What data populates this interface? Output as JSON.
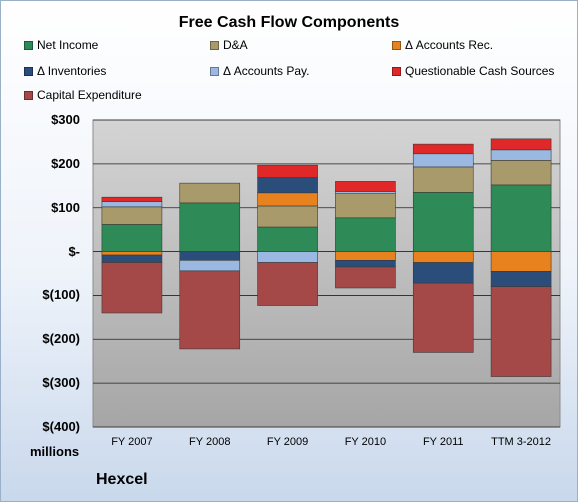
{
  "chart_data": {
    "type": "bar",
    "stacked": true,
    "title": "Free Cash Flow Components",
    "units_label": "millions",
    "company": "Hexcel",
    "categories": [
      "FY 2007",
      "FY 2008",
      "FY 2009",
      "FY 2010",
      "FY 2011",
      "TTM 3-2012"
    ],
    "y_ticks": [
      "$300",
      "$200",
      "$100",
      "$-",
      "$(100)",
      "$(200)",
      "$(300)",
      "$(400)"
    ],
    "y_tick_values": [
      300,
      200,
      100,
      0,
      -100,
      -200,
      -300,
      -400
    ],
    "ylim": [
      -400,
      300
    ],
    "grid": true,
    "legend_position": "top",
    "series": [
      {
        "name": "Net Income",
        "color": "#2e8b57",
        "values": [
          62,
          111,
          56,
          77,
          135,
          152
        ]
      },
      {
        "name": "D&A",
        "color": "#a89a6a",
        "values": [
          40,
          45,
          48,
          55,
          58,
          56
        ]
      },
      {
        "name": "Δ Accounts Rec.",
        "color": "#e8821e",
        "values": [
          -8,
          0,
          30,
          -20,
          -25,
          -45
        ]
      },
      {
        "name": "Δ Inventories",
        "color": "#2a4d7a",
        "values": [
          -17,
          -20,
          35,
          -15,
          -47,
          -35
        ]
      },
      {
        "name": "Δ Accounts Pay.",
        "color": "#9bb8e0",
        "values": [
          12,
          -24,
          -25,
          5,
          30,
          24
        ]
      },
      {
        "name": "Questionable Cash Sources",
        "color": "#e02828",
        "values": [
          10,
          0,
          28,
          23,
          22,
          25
        ]
      },
      {
        "name": "Capital Expenditure",
        "color": "#a54848",
        "values": [
          -115,
          -178,
          -98,
          -48,
          -158,
          -205
        ]
      }
    ]
  }
}
